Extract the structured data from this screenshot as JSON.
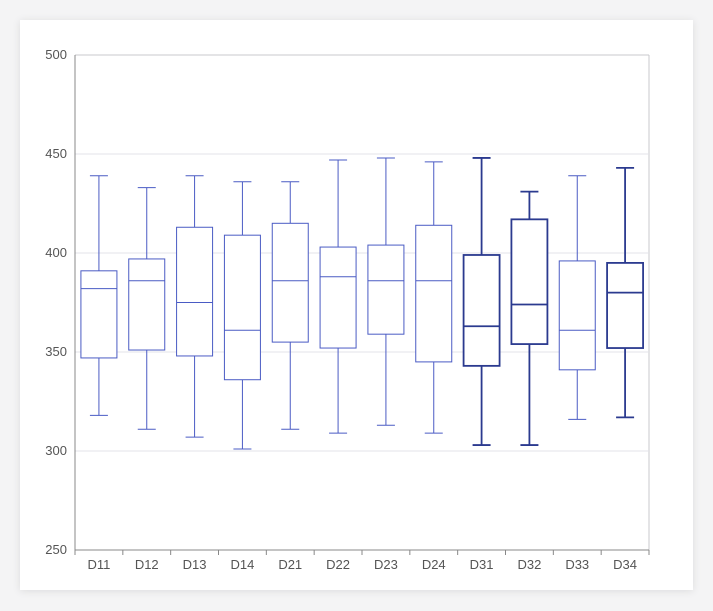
{
  "chart_data": {
    "type": "box",
    "categories": [
      "D11",
      "D12",
      "D13",
      "D14",
      "D21",
      "D22",
      "D23",
      "D24",
      "D31",
      "D32",
      "D33",
      "D34"
    ],
    "boxes": [
      {
        "category": "D11",
        "min": 318,
        "q1": 347,
        "median": 382,
        "q3": 391,
        "max": 439
      },
      {
        "category": "D12",
        "min": 311,
        "q1": 351,
        "median": 386,
        "q3": 397,
        "max": 433
      },
      {
        "category": "D13",
        "min": 307,
        "q1": 348,
        "median": 375,
        "q3": 413,
        "max": 439
      },
      {
        "category": "D14",
        "min": 301,
        "q1": 336,
        "median": 361,
        "q3": 409,
        "max": 436
      },
      {
        "category": "D21",
        "min": 311,
        "q1": 355,
        "median": 386,
        "q3": 415,
        "max": 436
      },
      {
        "category": "D22",
        "min": 309,
        "q1": 352,
        "median": 388,
        "q3": 403,
        "max": 447
      },
      {
        "category": "D23",
        "min": 313,
        "q1": 359,
        "median": 386,
        "q3": 404,
        "max": 448
      },
      {
        "category": "D24",
        "min": 309,
        "q1": 345,
        "median": 386,
        "q3": 414,
        "max": 446
      },
      {
        "category": "D31",
        "min": 303,
        "q1": 343,
        "median": 363,
        "q3": 399,
        "max": 448
      },
      {
        "category": "D32",
        "min": 303,
        "q1": 354,
        "median": 374,
        "q3": 417,
        "max": 431
      },
      {
        "category": "D33",
        "min": 316,
        "q1": 341,
        "median": 361,
        "q3": 396,
        "max": 439
      },
      {
        "category": "D34",
        "min": 317,
        "q1": 352,
        "median": 380,
        "q3": 395,
        "max": 443
      }
    ],
    "ylim": [
      250,
      500
    ],
    "yticks": [
      250,
      300,
      350,
      400,
      450,
      500
    ],
    "grid": true,
    "colors": {
      "default": "#4a5bc4",
      "highlight": "#2b3a8f",
      "grid": "#e3e3e8",
      "axis": "#c8c8cc"
    },
    "highlighted": [
      "D31",
      "D32",
      "D34"
    ]
  }
}
